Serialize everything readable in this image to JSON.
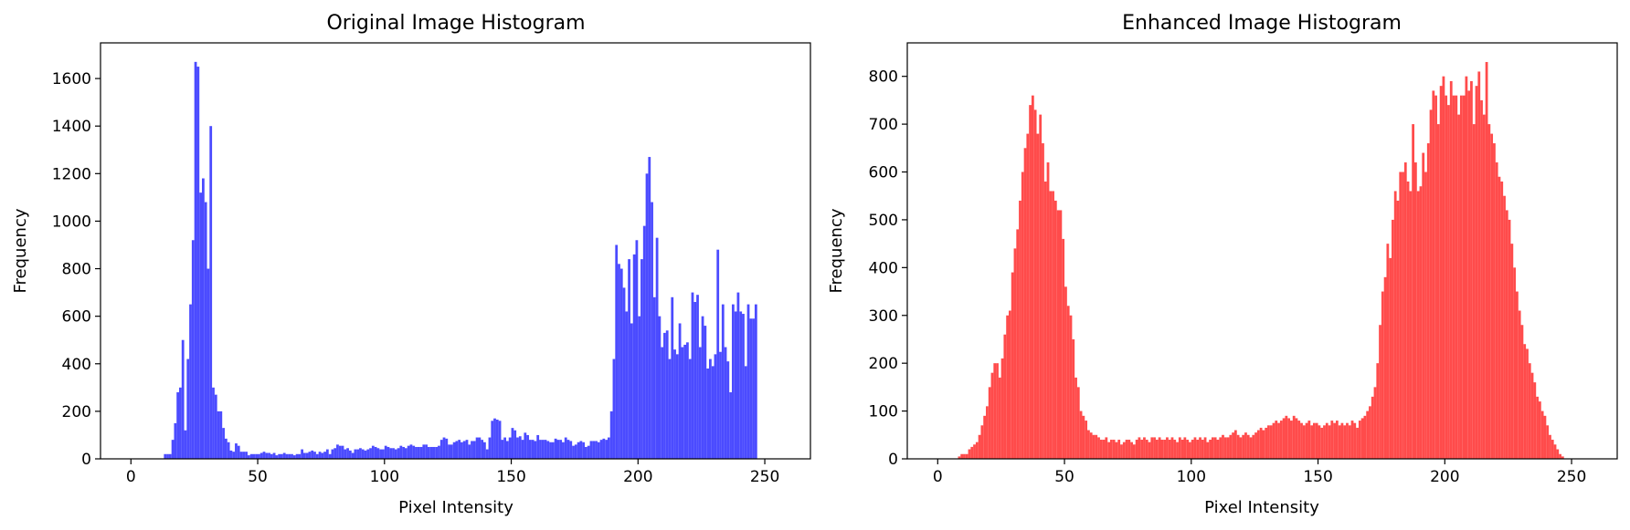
{
  "chart_data": [
    {
      "type": "bar",
      "title": "Original Image Histogram",
      "xlabel": "Pixel Intensity",
      "ylabel": "Frequency",
      "xlim": [
        -12,
        268
      ],
      "ylim": [
        0,
        1750
      ],
      "xticks": [
        0,
        50,
        100,
        150,
        200,
        250
      ],
      "yticks": [
        0,
        200,
        400,
        600,
        800,
        1000,
        1200,
        1400,
        1600
      ],
      "color": "#4b4bff",
      "grid": false,
      "bins_start": 0,
      "bin_width": 1,
      "values": [
        0,
        0,
        0,
        0,
        0,
        0,
        0,
        0,
        0,
        0,
        0,
        0,
        0,
        20,
        20,
        20,
        80,
        150,
        280,
        300,
        500,
        120,
        420,
        650,
        920,
        1670,
        1650,
        1120,
        1180,
        1080,
        800,
        1400,
        300,
        270,
        200,
        200,
        130,
        85,
        70,
        35,
        30,
        65,
        55,
        30,
        30,
        30,
        15,
        20,
        20,
        20,
        20,
        25,
        30,
        25,
        25,
        20,
        25,
        15,
        20,
        20,
        25,
        20,
        20,
        20,
        15,
        20,
        20,
        40,
        25,
        25,
        30,
        35,
        30,
        20,
        30,
        25,
        30,
        40,
        20,
        40,
        45,
        60,
        55,
        55,
        40,
        45,
        35,
        25,
        40,
        40,
        45,
        40,
        35,
        40,
        45,
        55,
        50,
        45,
        40,
        40,
        55,
        50,
        45,
        45,
        40,
        45,
        55,
        50,
        45,
        55,
        60,
        55,
        50,
        50,
        50,
        60,
        60,
        50,
        50,
        50,
        50,
        55,
        80,
        90,
        85,
        60,
        60,
        70,
        75,
        80,
        70,
        75,
        80,
        60,
        75,
        75,
        90,
        90,
        80,
        70,
        40,
        90,
        160,
        170,
        165,
        160,
        80,
        90,
        75,
        90,
        130,
        120,
        90,
        95,
        80,
        110,
        100,
        80,
        80,
        75,
        100,
        80,
        80,
        80,
        75,
        70,
        70,
        85,
        80,
        80,
        70,
        90,
        80,
        75,
        55,
        60,
        70,
        75,
        70,
        50,
        55,
        75,
        75,
        75,
        70,
        80,
        85,
        80,
        90,
        200,
        420,
        900,
        820,
        800,
        720,
        620,
        840,
        570,
        860,
        920,
        600,
        840,
        980,
        1200,
        1270,
        1080,
        680,
        930,
        600,
        470,
        530,
        540,
        420,
        680,
        460,
        440,
        570,
        470,
        480,
        490,
        420,
        700,
        660,
        690,
        470,
        600,
        560,
        380,
        420,
        390,
        440,
        880,
        450,
        650,
        470,
        410,
        280,
        650,
        620,
        700,
        620,
        610,
        390,
        650,
        590,
        590,
        650,
        0,
        0,
        0,
        0,
        0,
        0,
        0,
        0,
        0,
        0,
        0,
        0,
        0,
        0,
        0,
        0
      ]
    },
    {
      "type": "bar",
      "title": "Enhanced Image Histogram",
      "xlabel": "Pixel Intensity",
      "ylabel": "Frequency",
      "xlim": [
        -12,
        268
      ],
      "ylim": [
        0,
        870
      ],
      "xticks": [
        0,
        50,
        100,
        150,
        200,
        250
      ],
      "yticks": [
        0,
        100,
        200,
        300,
        400,
        500,
        600,
        700,
        800
      ],
      "color": "#ff4b4b",
      "grid": false,
      "bins_start": 0,
      "bin_width": 1,
      "values": [
        0,
        0,
        0,
        0,
        0,
        0,
        0,
        0,
        5,
        10,
        10,
        10,
        20,
        25,
        30,
        35,
        50,
        70,
        90,
        110,
        150,
        180,
        200,
        200,
        170,
        210,
        260,
        300,
        310,
        390,
        440,
        480,
        540,
        600,
        650,
        680,
        740,
        760,
        730,
        680,
        720,
        660,
        580,
        620,
        560,
        560,
        540,
        520,
        520,
        460,
        360,
        320,
        300,
        250,
        170,
        150,
        100,
        90,
        80,
        60,
        55,
        50,
        50,
        45,
        40,
        40,
        45,
        35,
        40,
        40,
        35,
        40,
        30,
        35,
        40,
        40,
        35,
        30,
        40,
        45,
        40,
        45,
        40,
        35,
        45,
        45,
        40,
        45,
        40,
        40,
        45,
        40,
        45,
        40,
        35,
        45,
        40,
        45,
        40,
        35,
        40,
        45,
        40,
        45,
        40,
        45,
        35,
        40,
        45,
        45,
        40,
        45,
        50,
        45,
        45,
        50,
        55,
        60,
        50,
        45,
        50,
        55,
        50,
        45,
        50,
        55,
        60,
        65,
        60,
        65,
        70,
        70,
        75,
        80,
        75,
        80,
        85,
        90,
        85,
        80,
        90,
        85,
        80,
        75,
        70,
        75,
        80,
        70,
        75,
        75,
        70,
        65,
        70,
        75,
        70,
        80,
        75,
        80,
        70,
        75,
        70,
        75,
        70,
        80,
        75,
        65,
        80,
        85,
        90,
        100,
        110,
        130,
        150,
        200,
        280,
        350,
        380,
        450,
        420,
        500,
        560,
        540,
        600,
        600,
        620,
        580,
        560,
        700,
        620,
        560,
        570,
        640,
        600,
        660,
        730,
        770,
        760,
        700,
        780,
        800,
        760,
        740,
        790,
        760,
        760,
        720,
        760,
        760,
        800,
        770,
        790,
        700,
        780,
        810,
        750,
        720,
        830,
        700,
        680,
        660,
        620,
        590,
        580,
        550,
        520,
        500,
        450,
        400,
        350,
        310,
        280,
        240,
        230,
        200,
        180,
        160,
        130,
        120,
        100,
        90,
        70,
        50,
        40,
        30,
        20,
        10,
        5,
        0,
        0,
        0,
        0,
        0,
        0
      ]
    }
  ]
}
